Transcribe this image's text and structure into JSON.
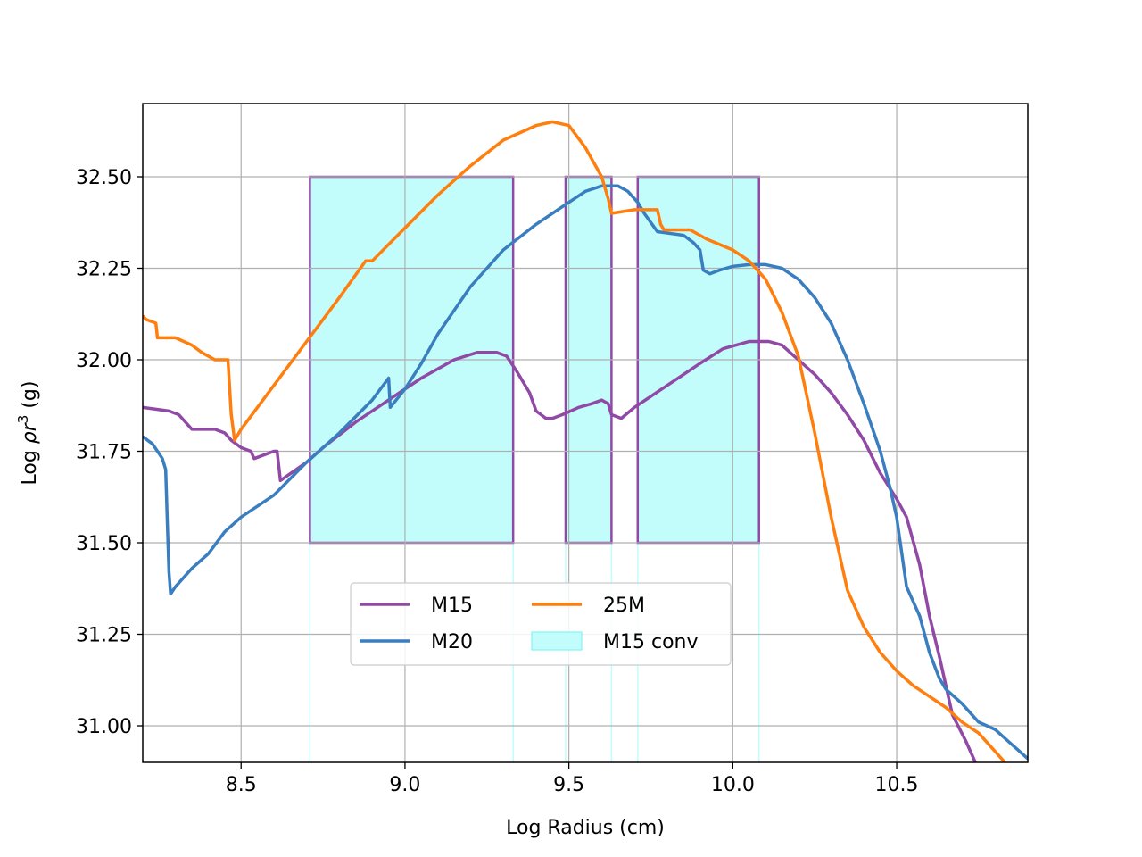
{
  "chart_data": {
    "type": "line",
    "title": "",
    "xlabel": "Log Radius (cm)",
    "ylabel_prefix": "Log ",
    "ylabel_rho": "ρr",
    "ylabel_exp": "3",
    "ylabel_suffix": " (g)",
    "xlim": [
      8.2,
      10.9
    ],
    "ylim": [
      30.9,
      32.7
    ],
    "grid": true,
    "xticks": [
      8.5,
      9.0,
      9.5,
      10.0,
      10.5
    ],
    "xtick_labels": [
      "8.5",
      "9.0",
      "9.5",
      "10.0",
      "10.5"
    ],
    "yticks": [
      31.0,
      31.25,
      31.5,
      31.75,
      32.0,
      32.25,
      32.5
    ],
    "ytick_labels": [
      "31.00",
      "31.25",
      "31.50",
      "31.75",
      "32.00",
      "32.25",
      "32.50"
    ],
    "legend_position": "lower-center",
    "series": [
      {
        "name": "M15",
        "color": "#9149a6",
        "points": [
          [
            8.2,
            31.87
          ],
          [
            8.28,
            31.86
          ],
          [
            8.31,
            31.85
          ],
          [
            8.35,
            31.81
          ],
          [
            8.37,
            31.81
          ],
          [
            8.42,
            31.81
          ],
          [
            8.45,
            31.8
          ],
          [
            8.47,
            31.78
          ],
          [
            8.5,
            31.76
          ],
          [
            8.53,
            31.75
          ],
          [
            8.54,
            31.73
          ],
          [
            8.6,
            31.75
          ],
          [
            8.61,
            31.75
          ],
          [
            8.62,
            31.67
          ],
          [
            8.7,
            31.72
          ],
          [
            8.75,
            31.76
          ],
          [
            8.85,
            31.83
          ],
          [
            8.95,
            31.89
          ],
          [
            9.05,
            31.95
          ],
          [
            9.15,
            32.0
          ],
          [
            9.22,
            32.02
          ],
          [
            9.28,
            32.02
          ],
          [
            9.31,
            32.01
          ],
          [
            9.34,
            31.97
          ],
          [
            9.38,
            31.91
          ],
          [
            9.4,
            31.86
          ],
          [
            9.43,
            31.84
          ],
          [
            9.45,
            31.84
          ],
          [
            9.48,
            31.85
          ],
          [
            9.53,
            31.87
          ],
          [
            9.57,
            31.88
          ],
          [
            9.6,
            31.89
          ],
          [
            9.62,
            31.88
          ],
          [
            9.63,
            31.85
          ],
          [
            9.66,
            31.84
          ],
          [
            9.7,
            31.87
          ],
          [
            9.8,
            31.93
          ],
          [
            9.9,
            31.99
          ],
          [
            9.97,
            32.03
          ],
          [
            10.05,
            32.05
          ],
          [
            10.11,
            32.05
          ],
          [
            10.15,
            32.04
          ],
          [
            10.2,
            32.0
          ],
          [
            10.25,
            31.96
          ],
          [
            10.3,
            31.91
          ],
          [
            10.35,
            31.85
          ],
          [
            10.4,
            31.78
          ],
          [
            10.45,
            31.69
          ],
          [
            10.5,
            31.62
          ],
          [
            10.53,
            31.57
          ],
          [
            10.57,
            31.44
          ],
          [
            10.6,
            31.3
          ],
          [
            10.63,
            31.19
          ],
          [
            10.67,
            31.03
          ],
          [
            10.71,
            30.96
          ],
          [
            10.74,
            30.9
          ]
        ]
      },
      {
        "name": "M20",
        "color": "#3a7ebf",
        "points": [
          [
            8.2,
            31.79
          ],
          [
            8.23,
            31.77
          ],
          [
            8.26,
            31.73
          ],
          [
            8.27,
            31.7
          ],
          [
            8.275,
            31.55
          ],
          [
            8.28,
            31.42
          ],
          [
            8.285,
            31.36
          ],
          [
            8.3,
            31.38
          ],
          [
            8.35,
            31.43
          ],
          [
            8.4,
            31.47
          ],
          [
            8.45,
            31.53
          ],
          [
            8.5,
            31.57
          ],
          [
            8.6,
            31.63
          ],
          [
            8.7,
            31.72
          ],
          [
            8.8,
            31.8
          ],
          [
            8.9,
            31.89
          ],
          [
            8.95,
            31.95
          ],
          [
            8.955,
            31.87
          ],
          [
            9.0,
            31.92
          ],
          [
            9.05,
            31.99
          ],
          [
            9.1,
            32.07
          ],
          [
            9.2,
            32.2
          ],
          [
            9.3,
            32.3
          ],
          [
            9.4,
            32.37
          ],
          [
            9.5,
            32.43
          ],
          [
            9.55,
            32.46
          ],
          [
            9.6,
            32.475
          ],
          [
            9.65,
            32.475
          ],
          [
            9.68,
            32.46
          ],
          [
            9.71,
            32.43
          ],
          [
            9.73,
            32.4
          ],
          [
            9.77,
            32.35
          ],
          [
            9.85,
            32.34
          ],
          [
            9.88,
            32.32
          ],
          [
            9.9,
            32.3
          ],
          [
            9.91,
            32.245
          ],
          [
            9.93,
            32.235
          ],
          [
            9.96,
            32.245
          ],
          [
            10.0,
            32.255
          ],
          [
            10.05,
            32.26
          ],
          [
            10.1,
            32.26
          ],
          [
            10.15,
            32.25
          ],
          [
            10.2,
            32.22
          ],
          [
            10.25,
            32.17
          ],
          [
            10.3,
            32.1
          ],
          [
            10.35,
            32.0
          ],
          [
            10.4,
            31.88
          ],
          [
            10.45,
            31.75
          ],
          [
            10.48,
            31.65
          ],
          [
            10.5,
            31.57
          ],
          [
            10.53,
            31.38
          ],
          [
            10.57,
            31.3
          ],
          [
            10.6,
            31.2
          ],
          [
            10.63,
            31.13
          ],
          [
            10.65,
            31.1
          ],
          [
            10.7,
            31.06
          ],
          [
            10.75,
            31.01
          ],
          [
            10.8,
            30.99
          ],
          [
            10.85,
            30.95
          ],
          [
            10.9,
            30.91
          ]
        ]
      },
      {
        "name": "25M",
        "color": "#ff7f0e",
        "points": [
          [
            8.2,
            32.12
          ],
          [
            8.21,
            32.11
          ],
          [
            8.24,
            32.1
          ],
          [
            8.245,
            32.06
          ],
          [
            8.3,
            32.06
          ],
          [
            8.35,
            32.04
          ],
          [
            8.38,
            32.02
          ],
          [
            8.42,
            32.0
          ],
          [
            8.46,
            32.0
          ],
          [
            8.47,
            31.85
          ],
          [
            8.48,
            31.78
          ],
          [
            8.5,
            31.81
          ],
          [
            8.6,
            31.93
          ],
          [
            8.7,
            32.05
          ],
          [
            8.8,
            32.17
          ],
          [
            8.88,
            32.27
          ],
          [
            8.9,
            32.27
          ],
          [
            9.0,
            32.36
          ],
          [
            9.1,
            32.45
          ],
          [
            9.2,
            32.53
          ],
          [
            9.3,
            32.6
          ],
          [
            9.4,
            32.64
          ],
          [
            9.45,
            32.65
          ],
          [
            9.5,
            32.64
          ],
          [
            9.55,
            32.58
          ],
          [
            9.6,
            32.5
          ],
          [
            9.62,
            32.44
          ],
          [
            9.63,
            32.4
          ],
          [
            9.7,
            32.41
          ],
          [
            9.77,
            32.41
          ],
          [
            9.78,
            32.37
          ],
          [
            9.79,
            32.355
          ],
          [
            9.87,
            32.355
          ],
          [
            9.9,
            32.34
          ],
          [
            9.92,
            32.33
          ],
          [
            10.0,
            32.3
          ],
          [
            10.05,
            32.27
          ],
          [
            10.1,
            32.22
          ],
          [
            10.15,
            32.13
          ],
          [
            10.2,
            32.01
          ],
          [
            10.25,
            31.8
          ],
          [
            10.3,
            31.57
          ],
          [
            10.35,
            31.37
          ],
          [
            10.4,
            31.27
          ],
          [
            10.45,
            31.2
          ],
          [
            10.5,
            31.15
          ],
          [
            10.55,
            31.11
          ],
          [
            10.6,
            31.08
          ],
          [
            10.65,
            31.05
          ],
          [
            10.7,
            31.01
          ],
          [
            10.75,
            30.98
          ],
          [
            10.8,
            30.93
          ],
          [
            10.83,
            30.9
          ]
        ]
      }
    ],
    "regions": {
      "name": "M15 conv",
      "fill": "#c2fdfb",
      "edge": "#9149a6",
      "y_low": 31.5,
      "y_high": 32.5,
      "spans": [
        [
          8.71,
          9.33
        ],
        [
          9.49,
          9.63
        ],
        [
          9.71,
          10.08
        ]
      ]
    },
    "legend": [
      {
        "label": "M15",
        "kind": "line",
        "color": "#9149a6"
      },
      {
        "label": "M20",
        "kind": "line",
        "color": "#3a7ebf"
      },
      {
        "label": "25M",
        "kind": "line",
        "color": "#ff7f0e"
      },
      {
        "label": "M15 conv",
        "kind": "patch",
        "color": "#c2fdfb"
      }
    ]
  }
}
